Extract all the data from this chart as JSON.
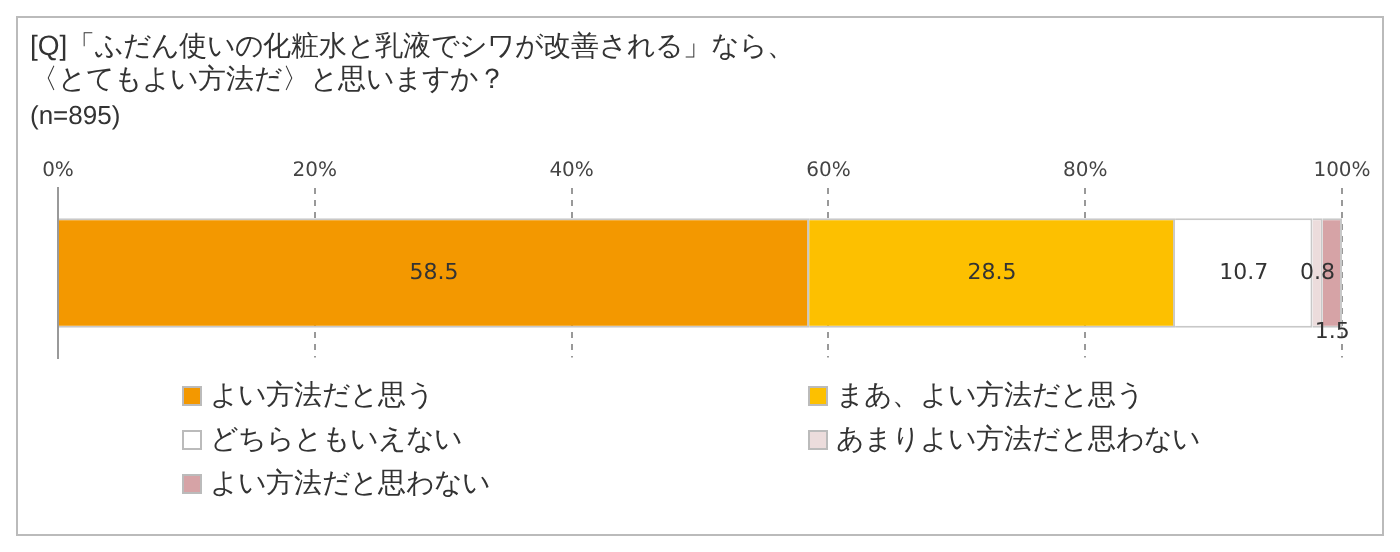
{
  "chart_data": {
    "type": "bar",
    "orientation": "horizontal",
    "stacked": true,
    "title": [
      "[Q]「ふだん使いの化粧水と乳液でシワが改善される」なら、",
      "〈とてもよい方法だ〉と思いますか？"
    ],
    "subtitle": "(n=895)",
    "categories": [
      null
    ],
    "series": [
      {
        "name": "よい方法だと思う",
        "color": "#f39800",
        "values": [
          58.5
        ]
      },
      {
        "name": "まあ、よい方法だと思う",
        "color": "#fdc000",
        "values": [
          28.5
        ]
      },
      {
        "name": "どちらともいえない",
        "color": "#ffffff",
        "values": [
          10.7
        ]
      },
      {
        "name": "あまりよい方法だと思わない",
        "color": "#ecdcdc",
        "values": [
          0.8
        ]
      },
      {
        "name": "よい方法だと思わない",
        "color": "#d6a3a6",
        "values": [
          1.5
        ]
      }
    ],
    "xlim": [
      0,
      100
    ],
    "xticks": [
      {
        "value": 0,
        "label": "0%"
      },
      {
        "value": 20,
        "label": "20%"
      },
      {
        "value": 40,
        "label": "40%"
      },
      {
        "value": 60,
        "label": "60%"
      },
      {
        "value": 80,
        "label": "80%"
      },
      {
        "value": 100,
        "label": "100%"
      }
    ],
    "grid": "x",
    "legend": "bottom",
    "data_labels": true
  }
}
